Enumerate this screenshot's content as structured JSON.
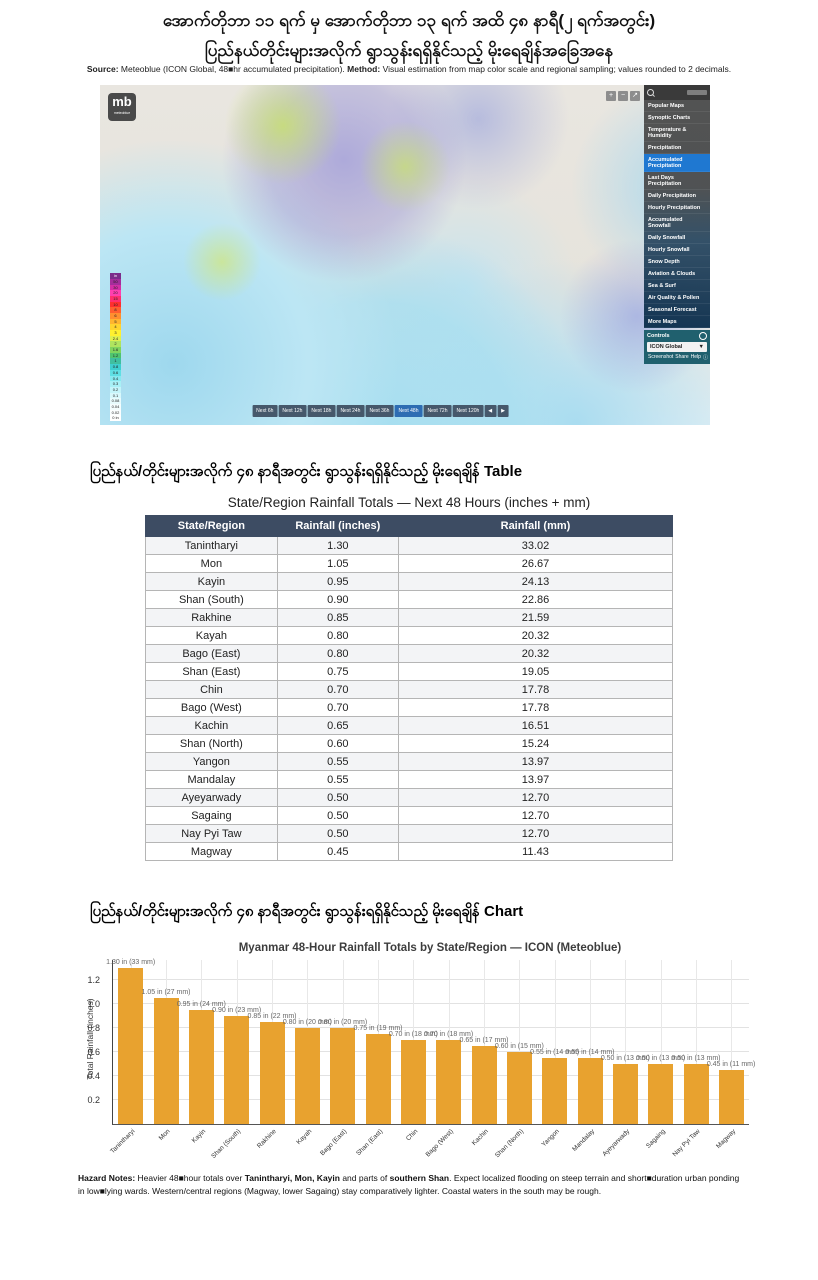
{
  "header": {
    "title_line1": "အောက်တိုဘာ ၁၁ ရက် မှ အောက်တိုဘာ ၁၃ ရက် အထိ ၄၈ နာရီ(၂ ရက်အတွင်း)",
    "title_line2": "ပြည်နယ်တိုင်းများအလိုက် ရွာသွန်းရရှိနိုင်သည့် မိုးရေချိန်အခြေအနေ",
    "source_label": "Source:",
    "source_text": " Meteoblue (ICON Global, 48■hr accumulated precipitation). ",
    "method_label": "Method:",
    "method_text": " Visual estimation from map color scale and regional sampling; values rounded to 2 decimals."
  },
  "map": {
    "logo_text": "mb",
    "logo_sub": "meteoblue",
    "zoom_buttons": [
      "+",
      "−",
      "↗"
    ],
    "sidebar": {
      "menu": [
        {
          "label": "Popular Maps",
          "cls": "top"
        },
        {
          "label": "Synoptic Charts",
          "cls": "top"
        },
        {
          "label": "Temperature & Humidity",
          "cls": "top"
        },
        {
          "label": "Precipitation",
          "cls": "top"
        },
        {
          "label": "Accumulated Precipitation",
          "cls": "active"
        },
        {
          "label": "Last Days Precipitation",
          "cls": "mid"
        },
        {
          "label": "Daily Precipitation",
          "cls": "mid"
        },
        {
          "label": "Hourly Precipitation",
          "cls": "mid"
        },
        {
          "label": "Accumulated Snowfall",
          "cls": "mid"
        },
        {
          "label": "Daily Snowfall",
          "cls": "mid"
        },
        {
          "label": "Hourly Snowfall",
          "cls": "mid"
        },
        {
          "label": "Snow Depth",
          "cls": "mid"
        },
        {
          "label": "Aviation & Clouds",
          "cls": "low"
        },
        {
          "label": "Sea & Surf",
          "cls": "low"
        },
        {
          "label": "Air Quality & Pollen",
          "cls": "low"
        },
        {
          "label": "Seasonal Forecast",
          "cls": "low"
        },
        {
          "label": "More Maps",
          "cls": "low"
        }
      ],
      "controls_label": "Controls",
      "model_value": "ICON Global",
      "model_caret": "▼",
      "footer_links": [
        "Screenshot",
        "Share",
        "Help",
        "ⓘ"
      ]
    },
    "legend": {
      "cells": [
        {
          "v": "in",
          "c": "#7b2d8b"
        },
        {
          "v": "50",
          "c": "#a42d9b"
        },
        {
          "v": "30",
          "c": "#d32fa6"
        },
        {
          "v": "20",
          "c": "#ff3fb0"
        },
        {
          "v": "15",
          "c": "#ff2f6f"
        },
        {
          "v": "10",
          "c": "#ff2f2f"
        },
        {
          "v": "8",
          "c": "#ff5f2f"
        },
        {
          "v": "6",
          "c": "#ff8f2f"
        },
        {
          "v": "5",
          "c": "#ffb42f"
        },
        {
          "v": "4",
          "c": "#ffd42f"
        },
        {
          "v": "3",
          "c": "#fff02f"
        },
        {
          "v": "2.4",
          "c": "#dff04f"
        },
        {
          "v": "2",
          "c": "#afe45f"
        },
        {
          "v": "1.6",
          "c": "#7fd45f"
        },
        {
          "v": "1.2",
          "c": "#4fc46f"
        },
        {
          "v": "1",
          "c": "#3fbf9f"
        },
        {
          "v": "0.8",
          "c": "#3fcfcf"
        },
        {
          "v": "0.6",
          "c": "#5fdfe4"
        },
        {
          "v": "0.4",
          "c": "#87e9f0"
        },
        {
          "v": "0.3",
          "c": "#a8f0f6"
        },
        {
          "v": "0.2",
          "c": "#c4f4fa"
        },
        {
          "v": "0.1",
          "c": "#d8f8fc"
        },
        {
          "v": "0.08",
          "c": "#e8fbfd"
        },
        {
          "v": "0.04",
          "c": "#f4fdfe"
        },
        {
          "v": "0.02",
          "c": "#fbfeff"
        },
        {
          "v": "0 in",
          "c": "#ffffff"
        }
      ]
    },
    "timebar": {
      "buttons": [
        {
          "label": "Next 6h",
          "cls": "plain"
        },
        {
          "label": "Next 12h",
          "cls": "plain"
        },
        {
          "label": "Next 18h",
          "cls": "plain"
        },
        {
          "label": "Next 24h",
          "cls": "plain"
        },
        {
          "label": "Next 36h",
          "cls": "plain"
        },
        {
          "label": "Next 48h",
          "cls": "active"
        },
        {
          "label": "Next 72h",
          "cls": "plain"
        },
        {
          "label": "Next 120h",
          "cls": "plain"
        },
        {
          "label": "◀",
          "cls": "plain"
        },
        {
          "label": "▶",
          "cls": "plain"
        }
      ]
    }
  },
  "table_section": {
    "heading": "ပြည်နယ်/တိုင်းများအလိုက် ၄၈ နာရီအတွင်း ရွာသွန်းရရှိနိုင်သည့် မိုးရေချိန် Table",
    "table_title": "State/Region Rainfall Totals — Next 48 Hours (inches + mm)",
    "columns": [
      "State/Region",
      "Rainfall (inches)",
      "Rainfall (mm)"
    ],
    "rows": [
      {
        "name": "Tanintharyi",
        "inches": "1.30",
        "mm": "33.02"
      },
      {
        "name": "Mon",
        "inches": "1.05",
        "mm": "26.67"
      },
      {
        "name": "Kayin",
        "inches": "0.95",
        "mm": "24.13"
      },
      {
        "name": "Shan (South)",
        "inches": "0.90",
        "mm": "22.86"
      },
      {
        "name": "Rakhine",
        "inches": "0.85",
        "mm": "21.59"
      },
      {
        "name": "Kayah",
        "inches": "0.80",
        "mm": "20.32"
      },
      {
        "name": "Bago (East)",
        "inches": "0.80",
        "mm": "20.32"
      },
      {
        "name": "Shan (East)",
        "inches": "0.75",
        "mm": "19.05"
      },
      {
        "name": "Chin",
        "inches": "0.70",
        "mm": "17.78"
      },
      {
        "name": "Bago (West)",
        "inches": "0.70",
        "mm": "17.78"
      },
      {
        "name": "Kachin",
        "inches": "0.65",
        "mm": "16.51"
      },
      {
        "name": "Shan (North)",
        "inches": "0.60",
        "mm": "15.24"
      },
      {
        "name": "Yangon",
        "inches": "0.55",
        "mm": "13.97"
      },
      {
        "name": "Mandalay",
        "inches": "0.55",
        "mm": "13.97"
      },
      {
        "name": "Ayeyarwady",
        "inches": "0.50",
        "mm": "12.70"
      },
      {
        "name": "Sagaing",
        "inches": "0.50",
        "mm": "12.70"
      },
      {
        "name": "Nay Pyi Taw",
        "inches": "0.50",
        "mm": "12.70"
      },
      {
        "name": "Magway",
        "inches": "0.45",
        "mm": "11.43"
      }
    ]
  },
  "chart_section": {
    "heading": "ပြည်နယ်/တိုင်းများအလိုက် ၄၈ နာရီအတွင်း ရွာသွန်းရရှိနိုင်သည့် မိုးရေချိန် Chart"
  },
  "chart_data": {
    "type": "bar",
    "title": "Myanmar 48-Hour Rainfall Totals by State/Region — ICON (Meteoblue)",
    "xlabel": "",
    "ylabel": "Total Rainfall (inches)",
    "ylim": [
      0,
      1.3667
    ],
    "yticks": [
      0.2,
      0.4,
      0.6,
      0.8,
      1.0,
      1.2
    ],
    "grid": true,
    "bar_color": "#E8A22F",
    "categories": [
      "Tanintharyi",
      "Mon",
      "Kayin",
      "Shan (South)",
      "Rakhine",
      "Kayah",
      "Bago (East)",
      "Shan (East)",
      "Chin",
      "Bago (West)",
      "Kachin",
      "Shan (North)",
      "Yangon",
      "Mandalay",
      "Ayeyarwady",
      "Sagaing",
      "Nay Pyi Taw",
      "Magway"
    ],
    "values": [
      1.3,
      1.05,
      0.95,
      0.9,
      0.85,
      0.8,
      0.8,
      0.75,
      0.7,
      0.7,
      0.65,
      0.6,
      0.55,
      0.55,
      0.5,
      0.5,
      0.5,
      0.45
    ],
    "bar_labels": [
      "1.30 in (33 mm)",
      "1.05 in (27 mm)",
      "0.95 in (24 mm)",
      "0.90 in (23 mm)",
      "0.85 in (22 mm)",
      "0.80 in (20 mm)",
      "0.80 in (20 mm)",
      "0.75 in (19 mm)",
      "0.70 in (18 mm)",
      "0.70 in (18 mm)",
      "0.65 in (17 mm)",
      "0.60 in (15 mm)",
      "0.55 in (14 mm)",
      "0.55 in (14 mm)",
      "0.50 in (13 mm)",
      "0.50 in (13 mm)",
      "0.50 in (13 mm)",
      "0.45 in (11 mm)"
    ]
  },
  "hazard": {
    "parts": [
      {
        "text": "Hazard Notes:",
        "cls": "b"
      },
      {
        "text": " Heavier 48■hour totals over ",
        "cls": "n"
      },
      {
        "text": "Tanintharyi, Mon, Kayin",
        "cls": "b"
      },
      {
        "text": " and parts of ",
        "cls": "n"
      },
      {
        "text": "southern Shan",
        "cls": "b"
      },
      {
        "text": ". Expect localized flooding on steep terrain and short■duration urban ponding in low■lying wards. Western/central regions (Magway, lower Sagaing) stay comparatively lighter. Coastal waters in the south may be rough.",
        "cls": "n"
      }
    ]
  }
}
